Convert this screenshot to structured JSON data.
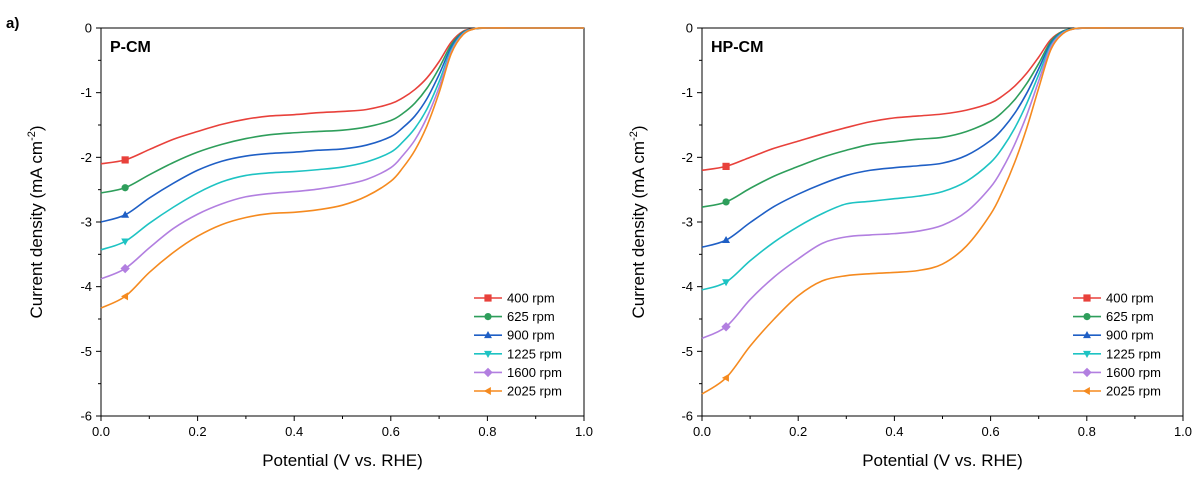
{
  "figure_label": "a)",
  "chart_data": [
    {
      "type": "line",
      "title": "P-CM",
      "xlabel": "Potential (V vs. RHE)",
      "ylabel_main": "Current density (mA cm",
      "ylabel_sup": "-2",
      "ylabel_tail": ")",
      "xlim": [
        0.0,
        1.0
      ],
      "ylim": [
        -6,
        0
      ],
      "x_ticks": [
        "0.0",
        "0.2",
        "0.4",
        "0.6",
        "0.8",
        "1.0"
      ],
      "y_ticks": [
        "0",
        "-1",
        "-2",
        "-3",
        "-4",
        "-5",
        "-6"
      ],
      "legend_position": "bottom-right",
      "grid": false,
      "x": [
        0.0,
        0.05,
        0.1,
        0.15,
        0.2,
        0.25,
        0.3,
        0.35,
        0.4,
        0.45,
        0.5,
        0.55,
        0.6,
        0.625,
        0.65,
        0.675,
        0.7,
        0.725,
        0.75,
        0.775,
        0.8,
        0.85,
        0.9,
        0.95,
        1.0
      ],
      "series": [
        {
          "name": "400 rpm",
          "color": "#e8413b",
          "marker": "square",
          "values": [
            -2.1,
            -2.04,
            -1.88,
            -1.72,
            -1.6,
            -1.49,
            -1.41,
            -1.36,
            -1.34,
            -1.31,
            -1.29,
            -1.26,
            -1.17,
            -1.08,
            -0.95,
            -0.77,
            -0.52,
            -0.22,
            -0.05,
            -0.01,
            0,
            0,
            0,
            0,
            0
          ]
        },
        {
          "name": "625 rpm",
          "color": "#2e9e5b",
          "marker": "circle",
          "values": [
            -2.55,
            -2.47,
            -2.27,
            -2.08,
            -1.92,
            -1.8,
            -1.71,
            -1.65,
            -1.62,
            -1.6,
            -1.58,
            -1.53,
            -1.43,
            -1.32,
            -1.16,
            -0.93,
            -0.62,
            -0.26,
            -0.06,
            -0.01,
            0,
            0,
            0,
            0,
            0
          ]
        },
        {
          "name": "900 rpm",
          "color": "#1f5fc5",
          "marker": "triangle",
          "values": [
            -3.0,
            -2.89,
            -2.63,
            -2.4,
            -2.2,
            -2.06,
            -1.98,
            -1.94,
            -1.92,
            -1.89,
            -1.87,
            -1.81,
            -1.68,
            -1.54,
            -1.36,
            -1.09,
            -0.72,
            -0.3,
            -0.07,
            -0.01,
            0,
            0,
            0,
            0,
            0
          ]
        },
        {
          "name": "1225 rpm",
          "color": "#1ec3c3",
          "marker": "triangle-down",
          "values": [
            -3.43,
            -3.3,
            -3.02,
            -2.77,
            -2.55,
            -2.38,
            -2.28,
            -2.24,
            -2.22,
            -2.19,
            -2.15,
            -2.07,
            -1.92,
            -1.76,
            -1.55,
            -1.25,
            -0.83,
            -0.34,
            -0.08,
            -0.01,
            0,
            0,
            0,
            0,
            0
          ]
        },
        {
          "name": "1600 rpm",
          "color": "#b27fe0",
          "marker": "diamond",
          "values": [
            -3.88,
            -3.72,
            -3.4,
            -3.1,
            -2.88,
            -2.72,
            -2.61,
            -2.56,
            -2.53,
            -2.49,
            -2.43,
            -2.34,
            -2.16,
            -1.97,
            -1.73,
            -1.38,
            -0.92,
            -0.37,
            -0.09,
            -0.01,
            0,
            0,
            0,
            0,
            0
          ]
        },
        {
          "name": "2025 rpm",
          "color": "#f58a1f",
          "marker": "triangle-left",
          "values": [
            -4.33,
            -4.15,
            -3.78,
            -3.47,
            -3.22,
            -3.04,
            -2.93,
            -2.87,
            -2.85,
            -2.81,
            -2.74,
            -2.6,
            -2.37,
            -2.16,
            -1.89,
            -1.51,
            -1.0,
            -0.4,
            -0.1,
            -0.01,
            0,
            0,
            0,
            0,
            0
          ]
        }
      ]
    },
    {
      "type": "line",
      "title": "HP-CM",
      "xlabel": "Potential (V vs. RHE)",
      "ylabel_main": "Current density (mA cm",
      "ylabel_sup": "-2",
      "ylabel_tail": ")",
      "xlim": [
        0.0,
        1.0
      ],
      "ylim": [
        -6,
        0
      ],
      "x_ticks": [
        "0.0",
        "0.2",
        "0.4",
        "0.6",
        "0.8",
        "1.0"
      ],
      "y_ticks": [
        "0",
        "-1",
        "-2",
        "-3",
        "-4",
        "-5",
        "-6"
      ],
      "legend_position": "bottom-right",
      "grid": false,
      "x": [
        0.0,
        0.05,
        0.1,
        0.15,
        0.2,
        0.25,
        0.3,
        0.35,
        0.4,
        0.45,
        0.5,
        0.55,
        0.6,
        0.625,
        0.65,
        0.675,
        0.7,
        0.725,
        0.75,
        0.775,
        0.8,
        0.85,
        0.9,
        0.95,
        1.0
      ],
      "series": [
        {
          "name": "400 rpm",
          "color": "#e8413b",
          "marker": "square",
          "values": [
            -2.2,
            -2.14,
            -2.0,
            -1.86,
            -1.75,
            -1.64,
            -1.54,
            -1.45,
            -1.39,
            -1.36,
            -1.33,
            -1.27,
            -1.16,
            -1.05,
            -0.9,
            -0.7,
            -0.45,
            -0.18,
            -0.05,
            -0.01,
            0,
            0,
            0,
            0,
            0
          ]
        },
        {
          "name": "625 rpm",
          "color": "#2e9e5b",
          "marker": "circle",
          "values": [
            -2.77,
            -2.69,
            -2.48,
            -2.29,
            -2.14,
            -2.0,
            -1.89,
            -1.8,
            -1.76,
            -1.72,
            -1.69,
            -1.6,
            -1.44,
            -1.3,
            -1.11,
            -0.86,
            -0.55,
            -0.21,
            -0.05,
            -0.01,
            0,
            0,
            0,
            0,
            0
          ]
        },
        {
          "name": "900 rpm",
          "color": "#1f5fc5",
          "marker": "triangle",
          "values": [
            -3.39,
            -3.28,
            -3.01,
            -2.76,
            -2.57,
            -2.41,
            -2.28,
            -2.2,
            -2.16,
            -2.13,
            -2.09,
            -1.97,
            -1.74,
            -1.56,
            -1.32,
            -1.01,
            -0.63,
            -0.24,
            -0.06,
            -0.01,
            0,
            0,
            0,
            0,
            0
          ]
        },
        {
          "name": "1225 rpm",
          "color": "#1ec3c3",
          "marker": "triangle-down",
          "values": [
            -4.05,
            -3.93,
            -3.6,
            -3.31,
            -3.07,
            -2.87,
            -2.72,
            -2.68,
            -2.64,
            -2.6,
            -2.53,
            -2.37,
            -2.08,
            -1.85,
            -1.55,
            -1.17,
            -0.72,
            -0.27,
            -0.07,
            -0.01,
            0,
            0,
            0,
            0,
            0
          ]
        },
        {
          "name": "1600 rpm",
          "color": "#b27fe0",
          "marker": "diamond",
          "values": [
            -4.8,
            -4.62,
            -4.2,
            -3.85,
            -3.57,
            -3.33,
            -3.23,
            -3.2,
            -3.18,
            -3.14,
            -3.05,
            -2.84,
            -2.46,
            -2.17,
            -1.8,
            -1.35,
            -0.82,
            -0.3,
            -0.08,
            -0.01,
            0,
            0,
            0,
            0,
            0
          ]
        },
        {
          "name": "2025 rpm",
          "color": "#f58a1f",
          "marker": "triangle-left",
          "values": [
            -5.66,
            -5.41,
            -4.92,
            -4.5,
            -4.14,
            -3.91,
            -3.83,
            -3.8,
            -3.78,
            -3.75,
            -3.65,
            -3.37,
            -2.88,
            -2.52,
            -2.08,
            -1.55,
            -0.93,
            -0.34,
            -0.09,
            -0.01,
            0,
            0,
            0,
            0,
            0
          ]
        }
      ]
    }
  ]
}
